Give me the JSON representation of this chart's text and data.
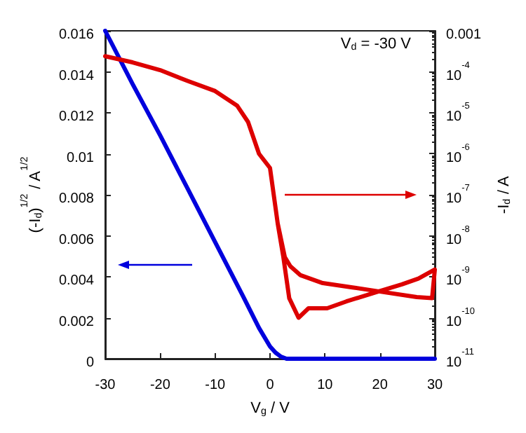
{
  "chart_data": {
    "type": "line",
    "xlabel": "V$_{g}$ / V",
    "ylabel": "(-I$_{d}$)$^{1/2}$ / A$^{1/2}$",
    "y2label": "-I$_{d}$ / A",
    "annotations": [
      "V$_{d}$ = -30 V"
    ],
    "xlim": [
      -30,
      30
    ],
    "xticks": [
      -30,
      -20,
      -10,
      0,
      10,
      20,
      30
    ],
    "ylim": [
      0,
      0.016
    ],
    "yticks": [
      0,
      0.002,
      0.004,
      0.006,
      0.008,
      0.01,
      0.012,
      0.014,
      0.016
    ],
    "y2lim": [
      1e-11,
      0.001
    ],
    "log": "y2",
    "y2ticks": [
      {
        "value": 1e-11,
        "label": "10$^{-11}$"
      },
      {
        "value": 1e-10,
        "label": "10$^{-10}$"
      },
      {
        "value": 1e-09,
        "label": "10$^{-9}$"
      },
      {
        "value": 1e-08,
        "label": "10$^{-8}$"
      },
      {
        "value": 1e-07,
        "label": "10$^{-7}$"
      },
      {
        "value": 1e-06,
        "label": "10$^{-6}$"
      },
      {
        "value": 1e-05,
        "label": "10$^{-5}$"
      },
      {
        "value": 0.0001,
        "label": "10$^{-4}$"
      },
      {
        "value": 0.001,
        "label": "0.001"
      }
    ],
    "grid": false,
    "marker": "none",
    "line_style": "solid",
    "series": [
      {
        "color": "#0000dd",
        "x": [
          -30,
          -25,
          -20,
          -15,
          -10,
          -5,
          -2,
          0,
          1,
          2,
          3,
          5,
          10,
          20,
          30
        ],
        "values": [
          0.016,
          0.0134,
          0.0109,
          0.0083,
          0.0057,
          0.0031,
          0.0015,
          0.0006,
          0.0003,
          0.0001,
          0,
          0,
          0,
          0,
          0
        ]
      },
      {
        "color": "#dd0000",
        "axis": "y2",
        "x": [
          -30,
          -25,
          -20,
          -15,
          -10,
          -6,
          -4,
          -2,
          0,
          1.4,
          2.4,
          3.5,
          5.2,
          7,
          10.4,
          13.9,
          19.8,
          24,
          27,
          30,
          29.5,
          26.7,
          19.8,
          15,
          9.6,
          5.5,
          3.7,
          2.7,
          1.4
        ],
        "values": [
          0.00024,
          0.00017,
          0.00011,
          6e-05,
          3.4e-05,
          1.5e-05,
          6e-06,
          1e-06,
          4.5e-07,
          2e-08,
          3.2e-09,
          3e-10,
          1e-10,
          1.7e-10,
          1.7e-10,
          2.5e-10,
          4.4e-10,
          6.5e-10,
          9e-10,
          1.5e-09,
          3e-10,
          3.2e-10,
          4.4e-10,
          5.5e-10,
          7e-10,
          1.1e-09,
          1.8e-09,
          3e-09,
          2e-08
        ]
      }
    ]
  }
}
